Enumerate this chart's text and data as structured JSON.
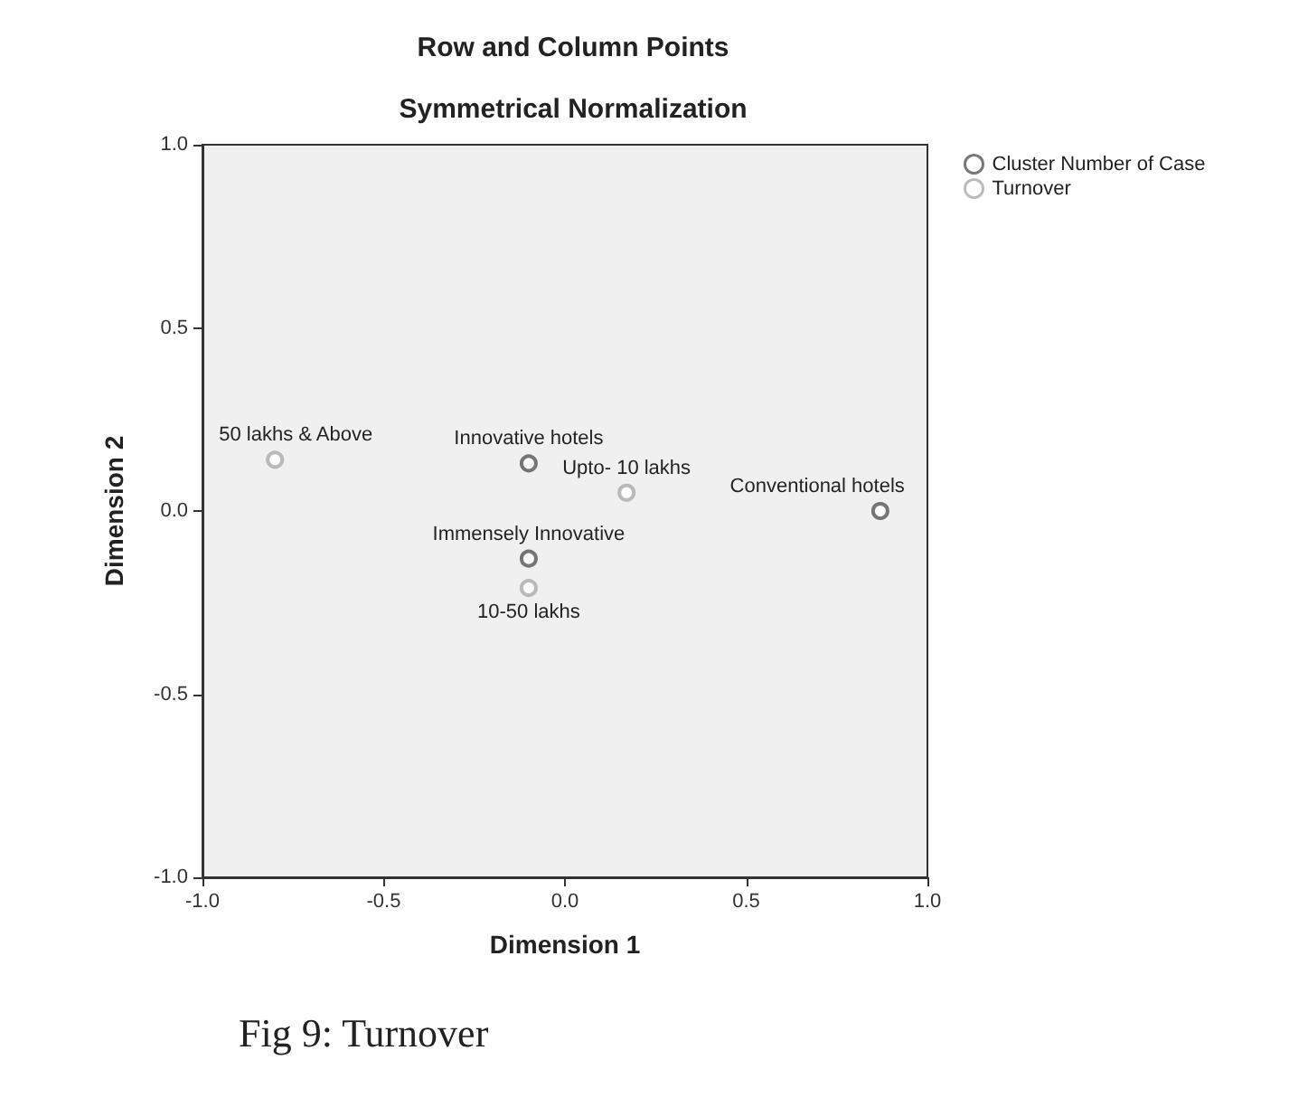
{
  "chart_data": {
    "type": "scatter",
    "title": "Row and Column Points",
    "subtitle": "Symmetrical Normalization",
    "xlabel": "Dimension 1",
    "ylabel": "Dimension 2",
    "xlim": [
      -1.0,
      1.0
    ],
    "ylim": [
      -1.0,
      1.0
    ],
    "xticks": [
      {
        "value": -1.0,
        "label": "-1.0"
      },
      {
        "value": -0.5,
        "label": "-0.5"
      },
      {
        "value": 0,
        "label": "0.0"
      },
      {
        "value": 0.5,
        "label": "0.5"
      },
      {
        "value": 1.0,
        "label": "1.0"
      }
    ],
    "yticks": [
      {
        "value": -1.0,
        "label": "-1.0"
      },
      {
        "value": -0.5,
        "label": "-0.5"
      },
      {
        "value": 0,
        "label": "0.0"
      },
      {
        "value": 0.5,
        "label": "0.5"
      },
      {
        "value": 1.0,
        "label": "1.0"
      }
    ],
    "marker": "circle",
    "legend": "top right",
    "grid": false,
    "series": [
      {
        "name": "Cluster Number of Case",
        "color": "#555555",
        "x": [
          -0.1,
          0.87,
          -0.1
        ],
        "values": [
          0.13,
          0.0,
          -0.13
        ]
      },
      {
        "name": "Turnover",
        "color": "#aaaaaa",
        "x": [
          -0.8,
          0.17,
          -0.1
        ],
        "values": [
          0.14,
          0.05,
          -0.21
        ]
      }
    ],
    "annotations": [
      {
        "text": "Innovative hotels",
        "x": -0.1,
        "y": 0.13
      },
      {
        "text": "Conventional hotels",
        "x": 0.87,
        "y": 0.0
      },
      {
        "text": "Immensely Innovative",
        "x": -0.1,
        "y": -0.13
      },
      {
        "text": "50 lakhs & Above",
        "x": -0.8,
        "y": 0.14
      },
      {
        "text": "Upto- 10 lakhs",
        "x": 0.17,
        "y": 0.05
      },
      {
        "text": "10-50 lakhs",
        "x": -0.1,
        "y": -0.21
      },
      "Fig 9: Turnover"
    ]
  }
}
